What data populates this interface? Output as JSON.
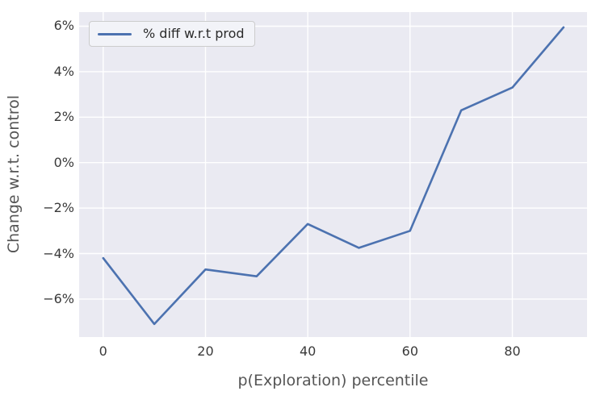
{
  "chart_data": {
    "type": "line",
    "title": "",
    "xlabel": "p(Exploration) percentile",
    "ylabel": "Change w.r.t. control",
    "grid": true,
    "legend_position": "upper left",
    "series": [
      {
        "name": "% diff w.r.t prod",
        "x": [
          0,
          10,
          20,
          30,
          40,
          50,
          60,
          70,
          80,
          90
        ],
        "y": [
          -4.2,
          -7.1,
          -4.7,
          -5.0,
          -2.7,
          -3.75,
          -3.0,
          2.3,
          3.3,
          5.95
        ]
      }
    ],
    "xlim": [
      -4.7,
      94.6
    ],
    "ylim": [
      -7.67,
      6.62
    ],
    "xticks": {
      "values": [
        0,
        20,
        40,
        60,
        80
      ],
      "labels": [
        "0",
        "20",
        "40",
        "60",
        "80"
      ]
    },
    "yticks": {
      "values": [
        6,
        4,
        2,
        0,
        -2,
        -4,
        -6
      ],
      "labels": [
        "6%",
        "4%",
        "2%",
        "0%",
        "−2%",
        "−4%",
        "−6%"
      ]
    }
  },
  "colors": {
    "line": "#4c72b0",
    "plot_background": "#eaeaf2",
    "grid": "#ffffff",
    "figure_background": "#ffffff",
    "tick_label": "#3a3a3a",
    "axis_label": "#555555",
    "legend_background": "#f2f3f8",
    "legend_border": "#cccccc",
    "legend_text": "#2b2b2b"
  }
}
